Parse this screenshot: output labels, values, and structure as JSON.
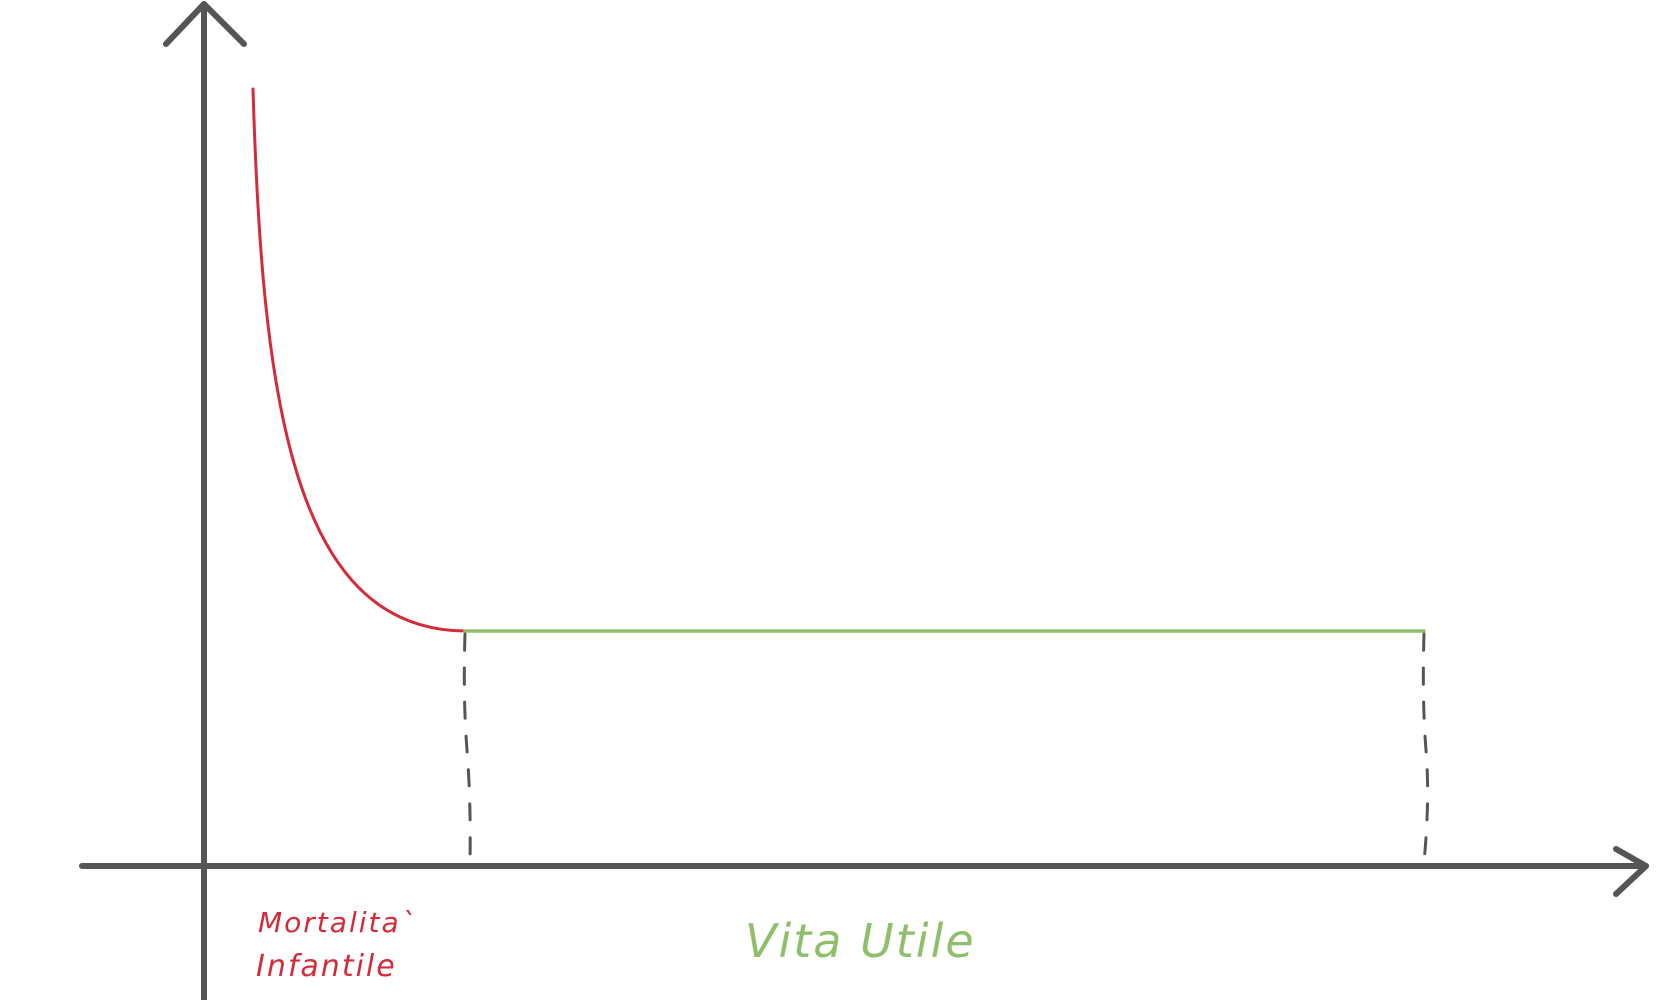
{
  "labels": {
    "infant_mortality_line1": "Mortalita`",
    "infant_mortality_line2": "Infantile",
    "useful_life": "Vita Utile"
  },
  "colors": {
    "axis": "#555555",
    "infant_mortality": "#d42b3a",
    "useful_life": "#8fbf6a",
    "dashed_marker": "#555555",
    "background": "#ffffff"
  }
}
